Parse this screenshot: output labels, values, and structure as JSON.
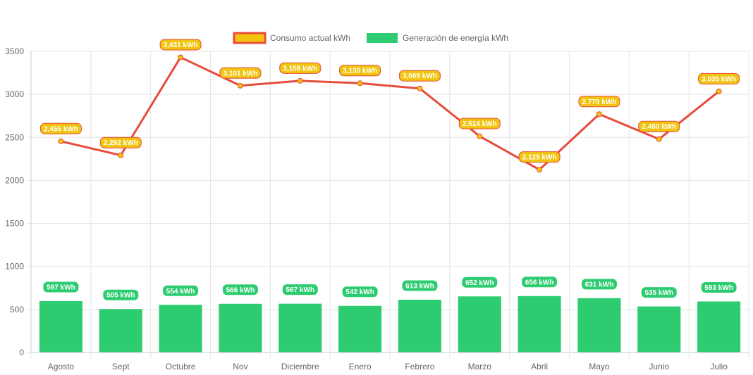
{
  "chart_data": {
    "type": "bar",
    "categories": [
      "Agosto",
      "Sept",
      "Octubre",
      "Nov",
      "Diciembre",
      "Enero",
      "Febrero",
      "Marzo",
      "Abril",
      "Mayo",
      "Junio",
      "Julio"
    ],
    "ylim": [
      0,
      3500
    ],
    "yticks": [
      "0",
      "500",
      "1000",
      "1500",
      "2000",
      "2500",
      "3000",
      "3500"
    ],
    "ytick_values": [
      0,
      500,
      1000,
      1500,
      2000,
      2500,
      3000,
      3500
    ],
    "grid": true,
    "legend_position": "top-center",
    "series": [
      {
        "name": "Consumo actual kWh",
        "type": "line",
        "values": [
          2455,
          2292,
          3431,
          3101,
          3158,
          3130,
          3069,
          2514,
          2125,
          2770,
          2480,
          3035
        ],
        "labels": [
          "2,455 kWh",
          "2,292 kWh",
          "3,431 kWh",
          "3,101 kWh",
          "3,158 kWh",
          "3,130 kWh",
          "3,069 kWh",
          "2,514 kWh",
          "2,125 kWh",
          "2,770 kWh",
          "2,480 kWh",
          "3,035 kWh"
        ],
        "color": "#e74c3c",
        "fill_color": "#f1c40f"
      },
      {
        "name": "Generación de energía kWh",
        "type": "bar",
        "values": [
          597,
          505,
          554,
          566,
          567,
          542,
          613,
          652,
          656,
          631,
          535,
          593
        ],
        "labels": [
          "597 kWh",
          "505 kWh",
          "554 kWh",
          "566 kWh",
          "567 kWh",
          "542 kWh",
          "613 kWh",
          "652 kWh",
          "656 kWh",
          "631 kWh",
          "535 kWh",
          "593 kWh"
        ],
        "color": "#2ecc71"
      }
    ]
  }
}
